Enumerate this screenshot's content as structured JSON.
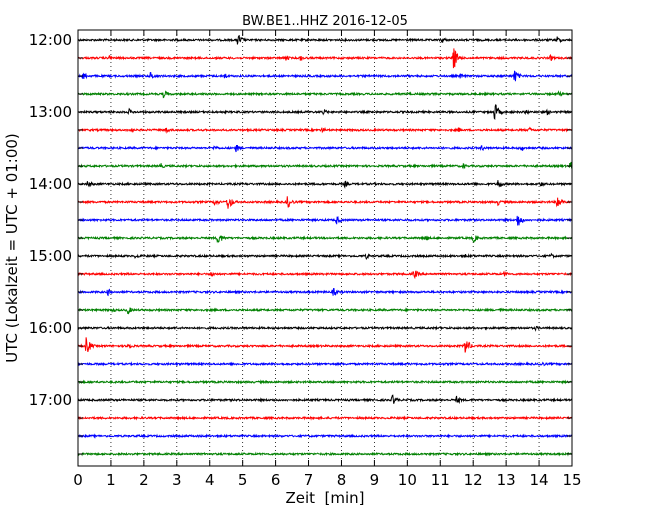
{
  "chart_data": {
    "type": "line",
    "title": "BW.BE1..HHZ 2016-12-05",
    "xlabel": "Zeit  [min]",
    "ylabel": "UTC (Lokalzeit = UTC + 01:00)",
    "xlim": [
      0,
      15
    ],
    "x_ticks": [
      "0",
      "1",
      "2",
      "3",
      "4",
      "5",
      "6",
      "7",
      "8",
      "9",
      "10",
      "11",
      "12",
      "13",
      "14",
      "15"
    ],
    "y_tick_labels": [
      "12:00",
      "13:00",
      "14:00",
      "15:00",
      "16:00",
      "17:00"
    ],
    "grid": "vertical dotted lines at each minute",
    "colors": [
      "#000000",
      "#ff0000",
      "#0000ff",
      "#008000"
    ],
    "traces": [
      {
        "start": "12:00",
        "color": "#000000",
        "events": [
          {
            "t": 4.85,
            "amp": 0.75
          },
          {
            "t": 11.05,
            "amp": 0.35
          },
          {
            "t": 14.55,
            "amp": 0.4
          }
        ]
      },
      {
        "start": "12:15",
        "color": "#ff0000",
        "events": [
          {
            "t": 0.95,
            "amp": 0.3
          },
          {
            "t": 6.3,
            "amp": 0.35
          },
          {
            "t": 6.75,
            "amp": 0.35
          },
          {
            "t": 11.4,
            "amp": 1.3
          },
          {
            "t": 14.35,
            "amp": 0.35
          }
        ]
      },
      {
        "start": "12:30",
        "color": "#0000ff",
        "events": [
          {
            "t": 0.15,
            "amp": 0.4
          },
          {
            "t": 2.2,
            "amp": 0.45
          },
          {
            "t": 4.45,
            "amp": 0.35
          },
          {
            "t": 11.6,
            "amp": 0.3
          },
          {
            "t": 13.25,
            "amp": 0.75
          }
        ]
      },
      {
        "start": "12:45",
        "color": "#008000",
        "events": [
          {
            "t": 2.6,
            "amp": 0.45
          },
          {
            "t": 10.0,
            "amp": 0.25
          },
          {
            "t": 14.6,
            "amp": 0.3
          }
        ]
      },
      {
        "start": "13:00",
        "color": "#000000",
        "events": [
          {
            "t": 1.55,
            "amp": 0.35
          },
          {
            "t": 7.45,
            "amp": 0.35
          },
          {
            "t": 12.65,
            "amp": 1.0
          },
          {
            "t": 13.6,
            "amp": 0.3
          },
          {
            "t": 14.25,
            "amp": 0.3
          }
        ]
      },
      {
        "start": "13:15",
        "color": "#ff0000",
        "events": [
          {
            "t": 1.55,
            "amp": 0.35
          },
          {
            "t": 2.65,
            "amp": 0.4
          },
          {
            "t": 7.4,
            "amp": 0.35
          },
          {
            "t": 11.55,
            "amp": 0.3
          },
          {
            "t": 13.7,
            "amp": 0.3
          }
        ]
      },
      {
        "start": "13:30",
        "color": "#0000ff",
        "events": [
          {
            "t": 4.15,
            "amp": 0.3
          },
          {
            "t": 4.8,
            "amp": 0.45
          },
          {
            "t": 12.25,
            "amp": 0.35
          },
          {
            "t": 13.45,
            "amp": 0.3
          }
        ]
      },
      {
        "start": "13:45",
        "color": "#008000",
        "events": [
          {
            "t": 2.5,
            "amp": 0.35
          },
          {
            "t": 11.7,
            "amp": 0.3
          },
          {
            "t": 14.95,
            "amp": 0.5
          }
        ]
      },
      {
        "start": "14:00",
        "color": "#000000",
        "events": [
          {
            "t": 0.3,
            "amp": 0.45
          },
          {
            "t": 8.1,
            "amp": 0.35
          },
          {
            "t": 12.75,
            "amp": 0.55
          },
          {
            "t": 14.05,
            "amp": 0.3
          }
        ]
      },
      {
        "start": "14:15",
        "color": "#ff0000",
        "events": [
          {
            "t": 4.15,
            "amp": 0.45
          },
          {
            "t": 4.55,
            "amp": 0.9
          },
          {
            "t": 6.35,
            "amp": 0.8
          },
          {
            "t": 12.75,
            "amp": 0.35
          },
          {
            "t": 14.55,
            "amp": 0.8
          }
        ]
      },
      {
        "start": "14:30",
        "color": "#0000ff",
        "events": [
          {
            "t": 7.85,
            "amp": 0.45
          },
          {
            "t": 13.35,
            "amp": 0.85
          }
        ]
      },
      {
        "start": "14:45",
        "color": "#008000",
        "events": [
          {
            "t": 4.25,
            "amp": 0.75
          },
          {
            "t": 10.55,
            "amp": 0.35
          },
          {
            "t": 12.0,
            "amp": 0.5
          }
        ]
      },
      {
        "start": "15:00",
        "color": "#000000",
        "events": [
          {
            "t": 1.75,
            "amp": 0.3
          },
          {
            "t": 8.75,
            "amp": 0.3
          },
          {
            "t": 11.75,
            "amp": 0.3
          },
          {
            "t": 14.35,
            "amp": 0.3
          }
        ]
      },
      {
        "start": "15:15",
        "color": "#ff0000",
        "events": [
          {
            "t": 4.05,
            "amp": 0.35
          },
          {
            "t": 10.2,
            "amp": 0.55
          },
          {
            "t": 12.95,
            "amp": 0.3
          }
        ]
      },
      {
        "start": "15:30",
        "color": "#0000ff",
        "events": [
          {
            "t": 0.9,
            "amp": 0.4
          },
          {
            "t": 7.75,
            "amp": 0.45
          }
        ]
      },
      {
        "start": "15:45",
        "color": "#008000",
        "events": [
          {
            "t": 1.05,
            "amp": 0.25
          },
          {
            "t": 1.5,
            "amp": 0.5
          },
          {
            "t": 12.8,
            "amp": 0.25
          }
        ]
      },
      {
        "start": "16:00",
        "color": "#000000",
        "events": [
          {
            "t": 13.9,
            "amp": 0.25
          }
        ]
      },
      {
        "start": "16:15",
        "color": "#ff0000",
        "events": [
          {
            "t": 0.25,
            "amp": 1.0
          },
          {
            "t": 1.5,
            "amp": 0.5
          },
          {
            "t": 11.75,
            "amp": 1.0
          }
        ]
      },
      {
        "start": "16:30",
        "color": "#0000ff",
        "events": [
          {
            "t": 14.05,
            "amp": 0.35
          }
        ]
      },
      {
        "start": "16:45",
        "color": "#008000",
        "events": []
      },
      {
        "start": "17:00",
        "color": "#000000",
        "events": [
          {
            "t": 9.55,
            "amp": 0.6
          },
          {
            "t": 11.5,
            "amp": 0.45
          }
        ]
      },
      {
        "start": "17:15",
        "color": "#ff0000",
        "events": []
      },
      {
        "start": "17:30",
        "color": "#0000ff",
        "events": []
      },
      {
        "start": "17:45",
        "color": "#008000",
        "events": []
      }
    ]
  }
}
